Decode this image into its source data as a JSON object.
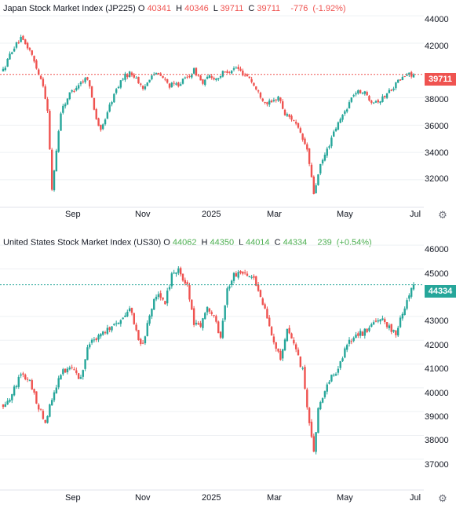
{
  "colors": {
    "up": "#26a69a",
    "down": "#ef5350",
    "up_text": "#4caf50",
    "down_text": "#ef5350",
    "jp_last_line": "#ef5350",
    "us_last_line": "#26a69a",
    "grid": "#eef0f3"
  },
  "chart_data": [
    {
      "type": "candlestick",
      "title": "Japan Stock Market Index (JP225)",
      "ohlc": {
        "O_label": "O",
        "O": "40341",
        "H_label": "H",
        "H": "40346",
        "L_label": "L",
        "L": "39711",
        "C_label": "C",
        "C": "39711",
        "change": "-776",
        "change_pct": "(-1.92%)"
      },
      "last_price": "39711",
      "x_tick_labels": [
        "Sep",
        "Nov",
        "2025",
        "Mar",
        "May",
        "Jul"
      ],
      "y_ticks": [
        "44000",
        "42000",
        "38000",
        "36000",
        "34000",
        "32000"
      ],
      "ylim": [
        30500,
        44700
      ],
      "path": [
        [
          0,
          40000
        ],
        [
          4,
          41500
        ],
        [
          8,
          42300
        ],
        [
          12,
          41500
        ],
        [
          15,
          40200
        ],
        [
          18,
          39000
        ],
        [
          20,
          37000
        ],
        [
          22,
          31300
        ],
        [
          26,
          37000
        ],
        [
          30,
          38300
        ],
        [
          34,
          39000
        ],
        [
          38,
          39500
        ],
        [
          40,
          38000
        ],
        [
          42,
          36500
        ],
        [
          44,
          35500
        ],
        [
          47,
          37000
        ],
        [
          51,
          38600
        ],
        [
          54,
          39500
        ],
        [
          57,
          39800
        ],
        [
          60,
          39500
        ],
        [
          63,
          38500
        ],
        [
          67,
          39800
        ],
        [
          71,
          39600
        ],
        [
          75,
          38900
        ],
        [
          79,
          39000
        ],
        [
          83,
          39500
        ],
        [
          86,
          40000
        ],
        [
          88,
          39600
        ],
        [
          90,
          39000
        ],
        [
          93,
          39600
        ],
        [
          96,
          39400
        ],
        [
          99,
          39800
        ],
        [
          102,
          40000
        ],
        [
          105,
          40200
        ],
        [
          108,
          39800
        ],
        [
          111,
          39500
        ],
        [
          114,
          38600
        ],
        [
          118,
          37700
        ],
        [
          121,
          37600
        ],
        [
          124,
          38100
        ],
        [
          127,
          36800
        ],
        [
          131,
          36400
        ],
        [
          134,
          35300
        ],
        [
          137,
          34200
        ],
        [
          140,
          31000
        ],
        [
          143,
          33000
        ],
        [
          146,
          34200
        ],
        [
          150,
          35800
        ],
        [
          154,
          37000
        ],
        [
          158,
          38300
        ],
        [
          162,
          38500
        ],
        [
          166,
          37800
        ],
        [
          170,
          37800
        ],
        [
          174,
          38500
        ],
        [
          178,
          39200
        ],
        [
          182,
          39700
        ],
        [
          185,
          39711
        ]
      ],
      "x_range": [
        0,
        185
      ]
    },
    {
      "type": "candlestick",
      "title": "United States Stock Market Index (US30)",
      "ohlc": {
        "O_label": "O",
        "O": "44062",
        "H_label": "H",
        "H": "44350",
        "L_label": "L",
        "L": "44014",
        "C_label": "C",
        "C": "44334",
        "change": "239",
        "change_pct": "(+0.54%)"
      },
      "last_price": "44334",
      "x_tick_labels": [
        "Sep",
        "Nov",
        "2025",
        "Mar",
        "May",
        "Jul"
      ],
      "y_ticks": [
        "46000",
        "45000",
        "43000",
        "42000",
        "41000",
        "40000",
        "39000",
        "38000",
        "37000"
      ],
      "ylim": [
        36100,
        46400
      ],
      "path": [
        [
          0,
          39300
        ],
        [
          4,
          39700
        ],
        [
          8,
          40600
        ],
        [
          12,
          40200
        ],
        [
          16,
          39200
        ],
        [
          19,
          38600
        ],
        [
          23,
          39900
        ],
        [
          27,
          40700
        ],
        [
          31,
          40800
        ],
        [
          35,
          40400
        ],
        [
          38,
          41700
        ],
        [
          42,
          42100
        ],
        [
          46,
          42400
        ],
        [
          50,
          42600
        ],
        [
          54,
          42900
        ],
        [
          57,
          43400
        ],
        [
          60,
          42300
        ],
        [
          63,
          41800
        ],
        [
          67,
          43400
        ],
        [
          70,
          44000
        ],
        [
          73,
          43600
        ],
        [
          76,
          44700
        ],
        [
          79,
          44900
        ],
        [
          83,
          44300
        ],
        [
          86,
          42700
        ],
        [
          89,
          42500
        ],
        [
          92,
          43400
        ],
        [
          95,
          43000
        ],
        [
          98,
          42100
        ],
        [
          101,
          44100
        ],
        [
          104,
          44700
        ],
        [
          107,
          44900
        ],
        [
          110,
          44600
        ],
        [
          113,
          44500
        ],
        [
          116,
          43900
        ],
        [
          119,
          42900
        ],
        [
          122,
          42000
        ],
        [
          125,
          41100
        ],
        [
          128,
          42400
        ],
        [
          131,
          41800
        ],
        [
          135,
          40700
        ],
        [
          138,
          38500
        ],
        [
          140,
          37200
        ],
        [
          142,
          39100
        ],
        [
          145,
          39800
        ],
        [
          148,
          40500
        ],
        [
          151,
          40800
        ],
        [
          154,
          41600
        ],
        [
          158,
          42200
        ],
        [
          162,
          42300
        ],
        [
          166,
          42600
        ],
        [
          170,
          42900
        ],
        [
          174,
          42500
        ],
        [
          177,
          42300
        ],
        [
          180,
          43200
        ],
        [
          184,
          44200
        ],
        [
          185,
          44334
        ]
      ],
      "x_range": [
        0,
        185
      ]
    }
  ],
  "ui": {
    "settings_icon": "gear-icon"
  }
}
